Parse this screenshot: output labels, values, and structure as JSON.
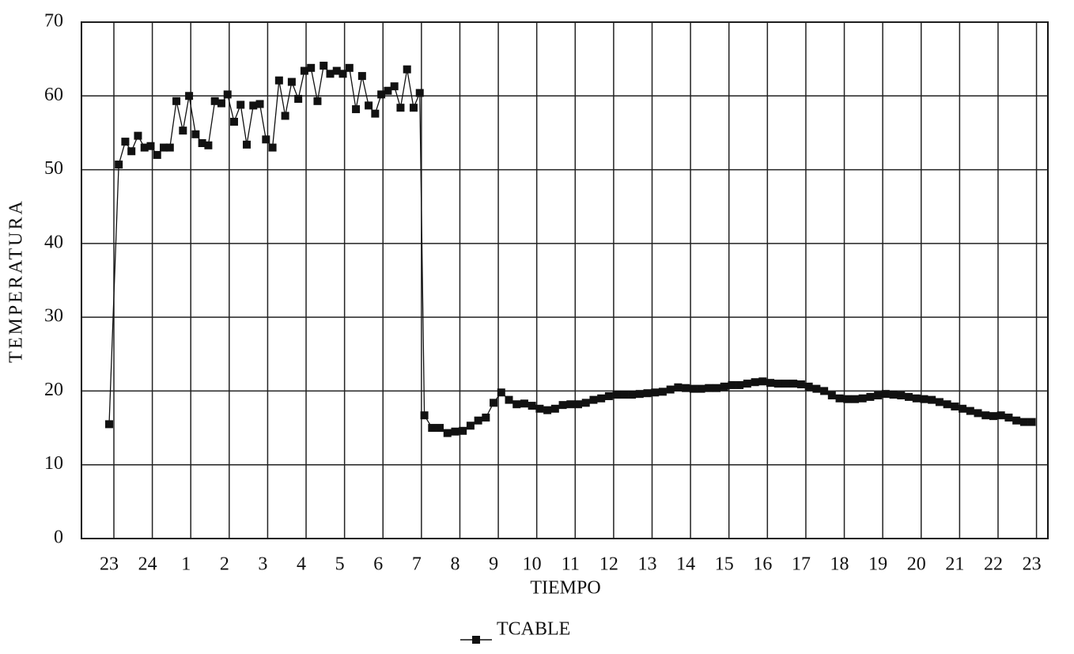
{
  "chart_data": {
    "type": "line",
    "x_label": "TIEMPO",
    "y_label": "TEMPERATURA",
    "x": [
      0,
      0.25,
      0.42,
      0.58,
      0.75,
      0.92,
      1.08,
      1.25,
      1.42,
      1.58,
      1.75,
      1.92,
      2.08,
      2.25,
      2.42,
      2.58,
      2.75,
      2.92,
      3.08,
      3.25,
      3.42,
      3.58,
      3.75,
      3.92,
      4.08,
      4.25,
      4.42,
      4.58,
      4.75,
      4.92,
      5.08,
      5.25,
      5.42,
      5.58,
      5.75,
      5.92,
      6.08,
      6.25,
      6.42,
      6.58,
      6.75,
      6.92,
      7.08,
      7.25,
      7.42,
      7.58,
      7.75,
      7.92,
      8.08,
      8.2,
      8.4,
      8.6,
      8.8,
      9.0,
      9.2,
      9.4,
      9.6,
      9.8,
      10.0,
      10.2,
      10.4,
      10.6,
      10.8,
      11.0,
      11.2,
      11.4,
      11.6,
      11.8,
      12.0,
      12.2,
      12.4,
      12.6,
      12.8,
      13.0,
      13.2,
      13.4,
      13.6,
      13.8,
      14.0,
      14.2,
      14.4,
      14.6,
      14.8,
      15.0,
      15.2,
      15.4,
      15.6,
      15.8,
      16.0,
      16.2,
      16.4,
      16.6,
      16.8,
      17.0,
      17.2,
      17.4,
      17.6,
      17.8,
      18.0,
      18.2,
      18.4,
      18.6,
      18.8,
      19.0,
      19.2,
      19.4,
      19.6,
      19.8,
      20.0,
      20.2,
      20.4,
      20.6,
      20.8,
      21.0,
      21.2,
      21.4,
      21.6,
      21.8,
      22.0,
      22.2,
      22.4,
      22.6,
      22.8,
      23.0,
      23.2,
      23.4,
      23.6,
      23.8,
      24.0
    ],
    "series": [
      {
        "name": "TCABLE",
        "color": "#111111",
        "values": [
          15.5,
          50.7,
          53.8,
          52.5,
          54.6,
          53.0,
          53.2,
          52.0,
          53.0,
          53.0,
          59.3,
          55.3,
          60.0,
          54.8,
          53.6,
          53.3,
          59.3,
          59.0,
          60.2,
          56.5,
          58.8,
          53.4,
          58.7,
          58.9,
          54.1,
          53.0,
          62.1,
          57.3,
          61.9,
          59.6,
          63.4,
          63.8,
          59.3,
          64.1,
          63.0,
          63.4,
          63.0,
          63.8,
          58.2,
          62.7,
          58.7,
          57.6,
          60.2,
          60.7,
          61.3,
          58.4,
          63.6,
          58.4,
          60.4,
          16.7,
          15.0,
          15.0,
          14.3,
          14.5,
          14.6,
          15.3,
          16.0,
          16.4,
          18.4,
          19.8,
          18.8,
          18.2,
          18.3,
          18.0,
          17.6,
          17.4,
          17.6,
          18.1,
          18.2,
          18.2,
          18.4,
          18.8,
          19.0,
          19.3,
          19.5,
          19.5,
          19.5,
          19.6,
          19.7,
          19.8,
          19.9,
          20.2,
          20.5,
          20.4,
          20.3,
          20.3,
          20.4,
          20.4,
          20.6,
          20.8,
          20.8,
          21.0,
          21.2,
          21.3,
          21.1,
          21.0,
          21.0,
          21.0,
          20.9,
          20.6,
          20.3,
          20.0,
          19.4,
          19.0,
          18.9,
          18.9,
          19.0,
          19.2,
          19.4,
          19.6,
          19.5,
          19.4,
          19.2,
          19.0,
          18.9,
          18.8,
          18.5,
          18.2,
          17.9,
          17.6,
          17.3,
          17.0,
          16.7,
          16.6,
          16.7,
          16.4,
          16.0,
          15.8,
          15.8
        ]
      }
    ],
    "xlim": [
      -0.72,
      24.42
    ],
    "xticks": [
      {
        "value": 0,
        "label": "23"
      },
      {
        "value": 1,
        "label": "24"
      },
      {
        "value": 2,
        "label": "1"
      },
      {
        "value": 3,
        "label": "2"
      },
      {
        "value": 4,
        "label": "3"
      },
      {
        "value": 5,
        "label": "4"
      },
      {
        "value": 6,
        "label": "5"
      },
      {
        "value": 7,
        "label": "6"
      },
      {
        "value": 8,
        "label": "7"
      },
      {
        "value": 9,
        "label": "8"
      },
      {
        "value": 10,
        "label": "9"
      },
      {
        "value": 11,
        "label": "10"
      },
      {
        "value": 12,
        "label": "11"
      },
      {
        "value": 13,
        "label": "12"
      },
      {
        "value": 14,
        "label": "13"
      },
      {
        "value": 15,
        "label": "14"
      },
      {
        "value": 16,
        "label": "15"
      },
      {
        "value": 17,
        "label": "16"
      },
      {
        "value": 18,
        "label": "17"
      },
      {
        "value": 19,
        "label": "18"
      },
      {
        "value": 20,
        "label": "19"
      },
      {
        "value": 21,
        "label": "20"
      },
      {
        "value": 22,
        "label": "21"
      },
      {
        "value": 23,
        "label": "22"
      },
      {
        "value": 24,
        "label": "23"
      }
    ],
    "ylim": [
      0,
      70
    ],
    "yticks": [
      0,
      10,
      20,
      30,
      40,
      50,
      60,
      70
    ],
    "grid": true,
    "legend": "bottom"
  }
}
